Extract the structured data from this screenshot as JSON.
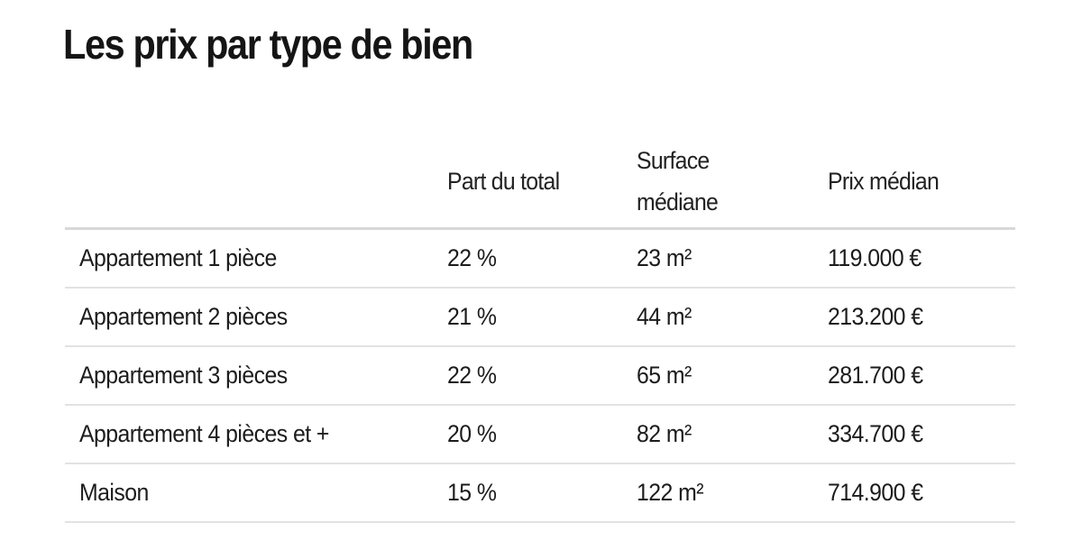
{
  "page": {
    "title": "Les prix par type de bien"
  },
  "table": {
    "columns": [
      "",
      "Part du total",
      "Surface médiane",
      "Prix médian"
    ],
    "rows": [
      {
        "type": "Appartement 1 pièce",
        "share": "22 %",
        "surface": "23 m²",
        "price": "119.000 €"
      },
      {
        "type": "Appartement 2 pièces",
        "share": "21 %",
        "surface": "44 m²",
        "price": "213.200 €"
      },
      {
        "type": "Appartement 3 pièces",
        "share": "22 %",
        "surface": "65 m²",
        "price": "281.700 €"
      },
      {
        "type": "Appartement 4 pièces et +",
        "share": "20 %",
        "surface": "82 m²",
        "price": "334.700 €"
      },
      {
        "type": "Maison",
        "share": "15 %",
        "surface": "122 m²",
        "price": "714.900 €"
      }
    ]
  }
}
